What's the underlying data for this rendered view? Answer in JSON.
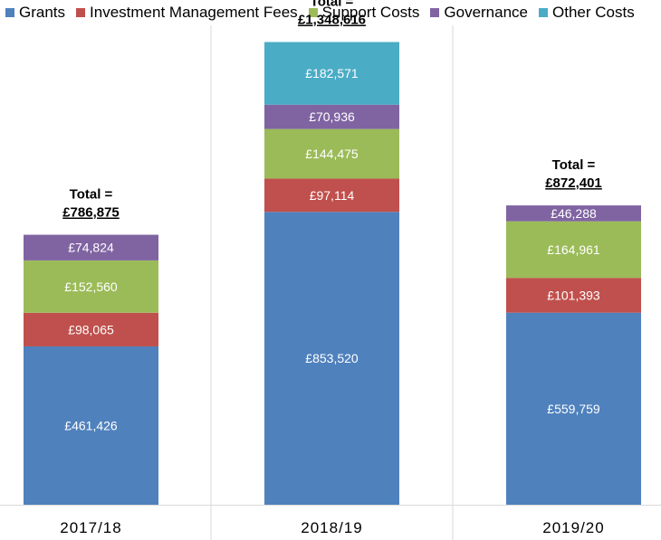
{
  "chart_data": {
    "type": "bar",
    "stacked": true,
    "title": "",
    "xlabel": "",
    "ylabel": "",
    "ylim": [
      0,
      1450000
    ],
    "grid": false,
    "legend_position": "top",
    "categories": [
      "2017/18",
      "2018/19",
      "2019/20"
    ],
    "series": [
      {
        "name": "Grants",
        "color": "#4F81BD",
        "values": [
          461426,
          853520,
          559759
        ],
        "labels": [
          "£461,426",
          "£853,520",
          "£559,759"
        ]
      },
      {
        "name": "Investment Management Fees",
        "color": "#C0504D",
        "values": [
          98065,
          97114,
          101393
        ],
        "labels": [
          "£98,065",
          "£97,114",
          "£101,393"
        ]
      },
      {
        "name": "Support Costs",
        "color": "#9BBB59",
        "values": [
          152560,
          144475,
          164961
        ],
        "labels": [
          "£152,560",
          "£144,475",
          "£164,961"
        ]
      },
      {
        "name": "Governance",
        "color": "#8064A2",
        "values": [
          74824,
          70936,
          46288
        ],
        "labels": [
          "£74,824",
          "£70,936",
          "£46,288"
        ]
      },
      {
        "name": "Other Costs",
        "color": "#4BACC6",
        "values": [
          0,
          182571,
          0
        ],
        "labels": [
          "",
          "£182,571",
          ""
        ]
      }
    ],
    "totals": {
      "prefix": "Total =",
      "labels": [
        "£786,875",
        "£1,348,616",
        "£872,401"
      ]
    }
  }
}
